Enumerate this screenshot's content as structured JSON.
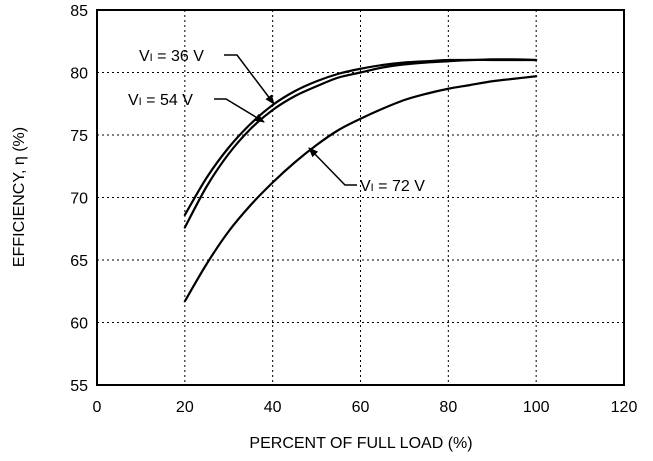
{
  "chart_data": {
    "type": "line",
    "title": "",
    "xlabel": "PERCENT OF FULL LOAD (%)",
    "ylabel": "EFFICIENCY, η (%)",
    "xlim": [
      0,
      120
    ],
    "ylim": [
      55,
      85
    ],
    "x_ticks": [
      0,
      20,
      40,
      60,
      80,
      100,
      120
    ],
    "y_ticks": [
      55,
      60,
      65,
      70,
      75,
      80,
      85
    ],
    "grid": true,
    "series": [
      {
        "label_parts": [
          "V",
          "I",
          " = 36 V"
        ],
        "x": [
          20,
          25,
          30,
          35,
          40,
          45,
          50,
          55,
          60,
          65,
          70,
          75,
          80,
          85,
          90,
          95,
          100
        ],
        "y": [
          68.6,
          71.6,
          74.0,
          75.9,
          77.4,
          78.5,
          79.3,
          79.9,
          80.3,
          80.6,
          80.8,
          80.9,
          81.0,
          81.0,
          81.05,
          81.05,
          81.0
        ]
      },
      {
        "label_parts": [
          "V",
          "I",
          " = 54 V"
        ],
        "x": [
          20,
          25,
          30,
          35,
          40,
          45,
          50,
          55,
          60,
          65,
          70,
          75,
          80,
          85,
          90,
          95,
          100
        ],
        "y": [
          67.6,
          70.9,
          73.5,
          75.5,
          77.0,
          78.1,
          78.9,
          79.6,
          80.0,
          80.4,
          80.65,
          80.8,
          80.9,
          81.0,
          81.0,
          81.0,
          81.0
        ]
      },
      {
        "label_parts": [
          "V",
          "I",
          " = 72 V"
        ],
        "x": [
          20,
          25,
          30,
          35,
          40,
          45,
          50,
          55,
          60,
          65,
          70,
          75,
          80,
          85,
          90,
          95,
          100
        ],
        "y": [
          61.7,
          64.7,
          67.3,
          69.4,
          71.2,
          72.8,
          74.2,
          75.4,
          76.3,
          77.1,
          77.8,
          78.3,
          78.7,
          79.0,
          79.3,
          79.5,
          79.7
        ]
      }
    ]
  }
}
